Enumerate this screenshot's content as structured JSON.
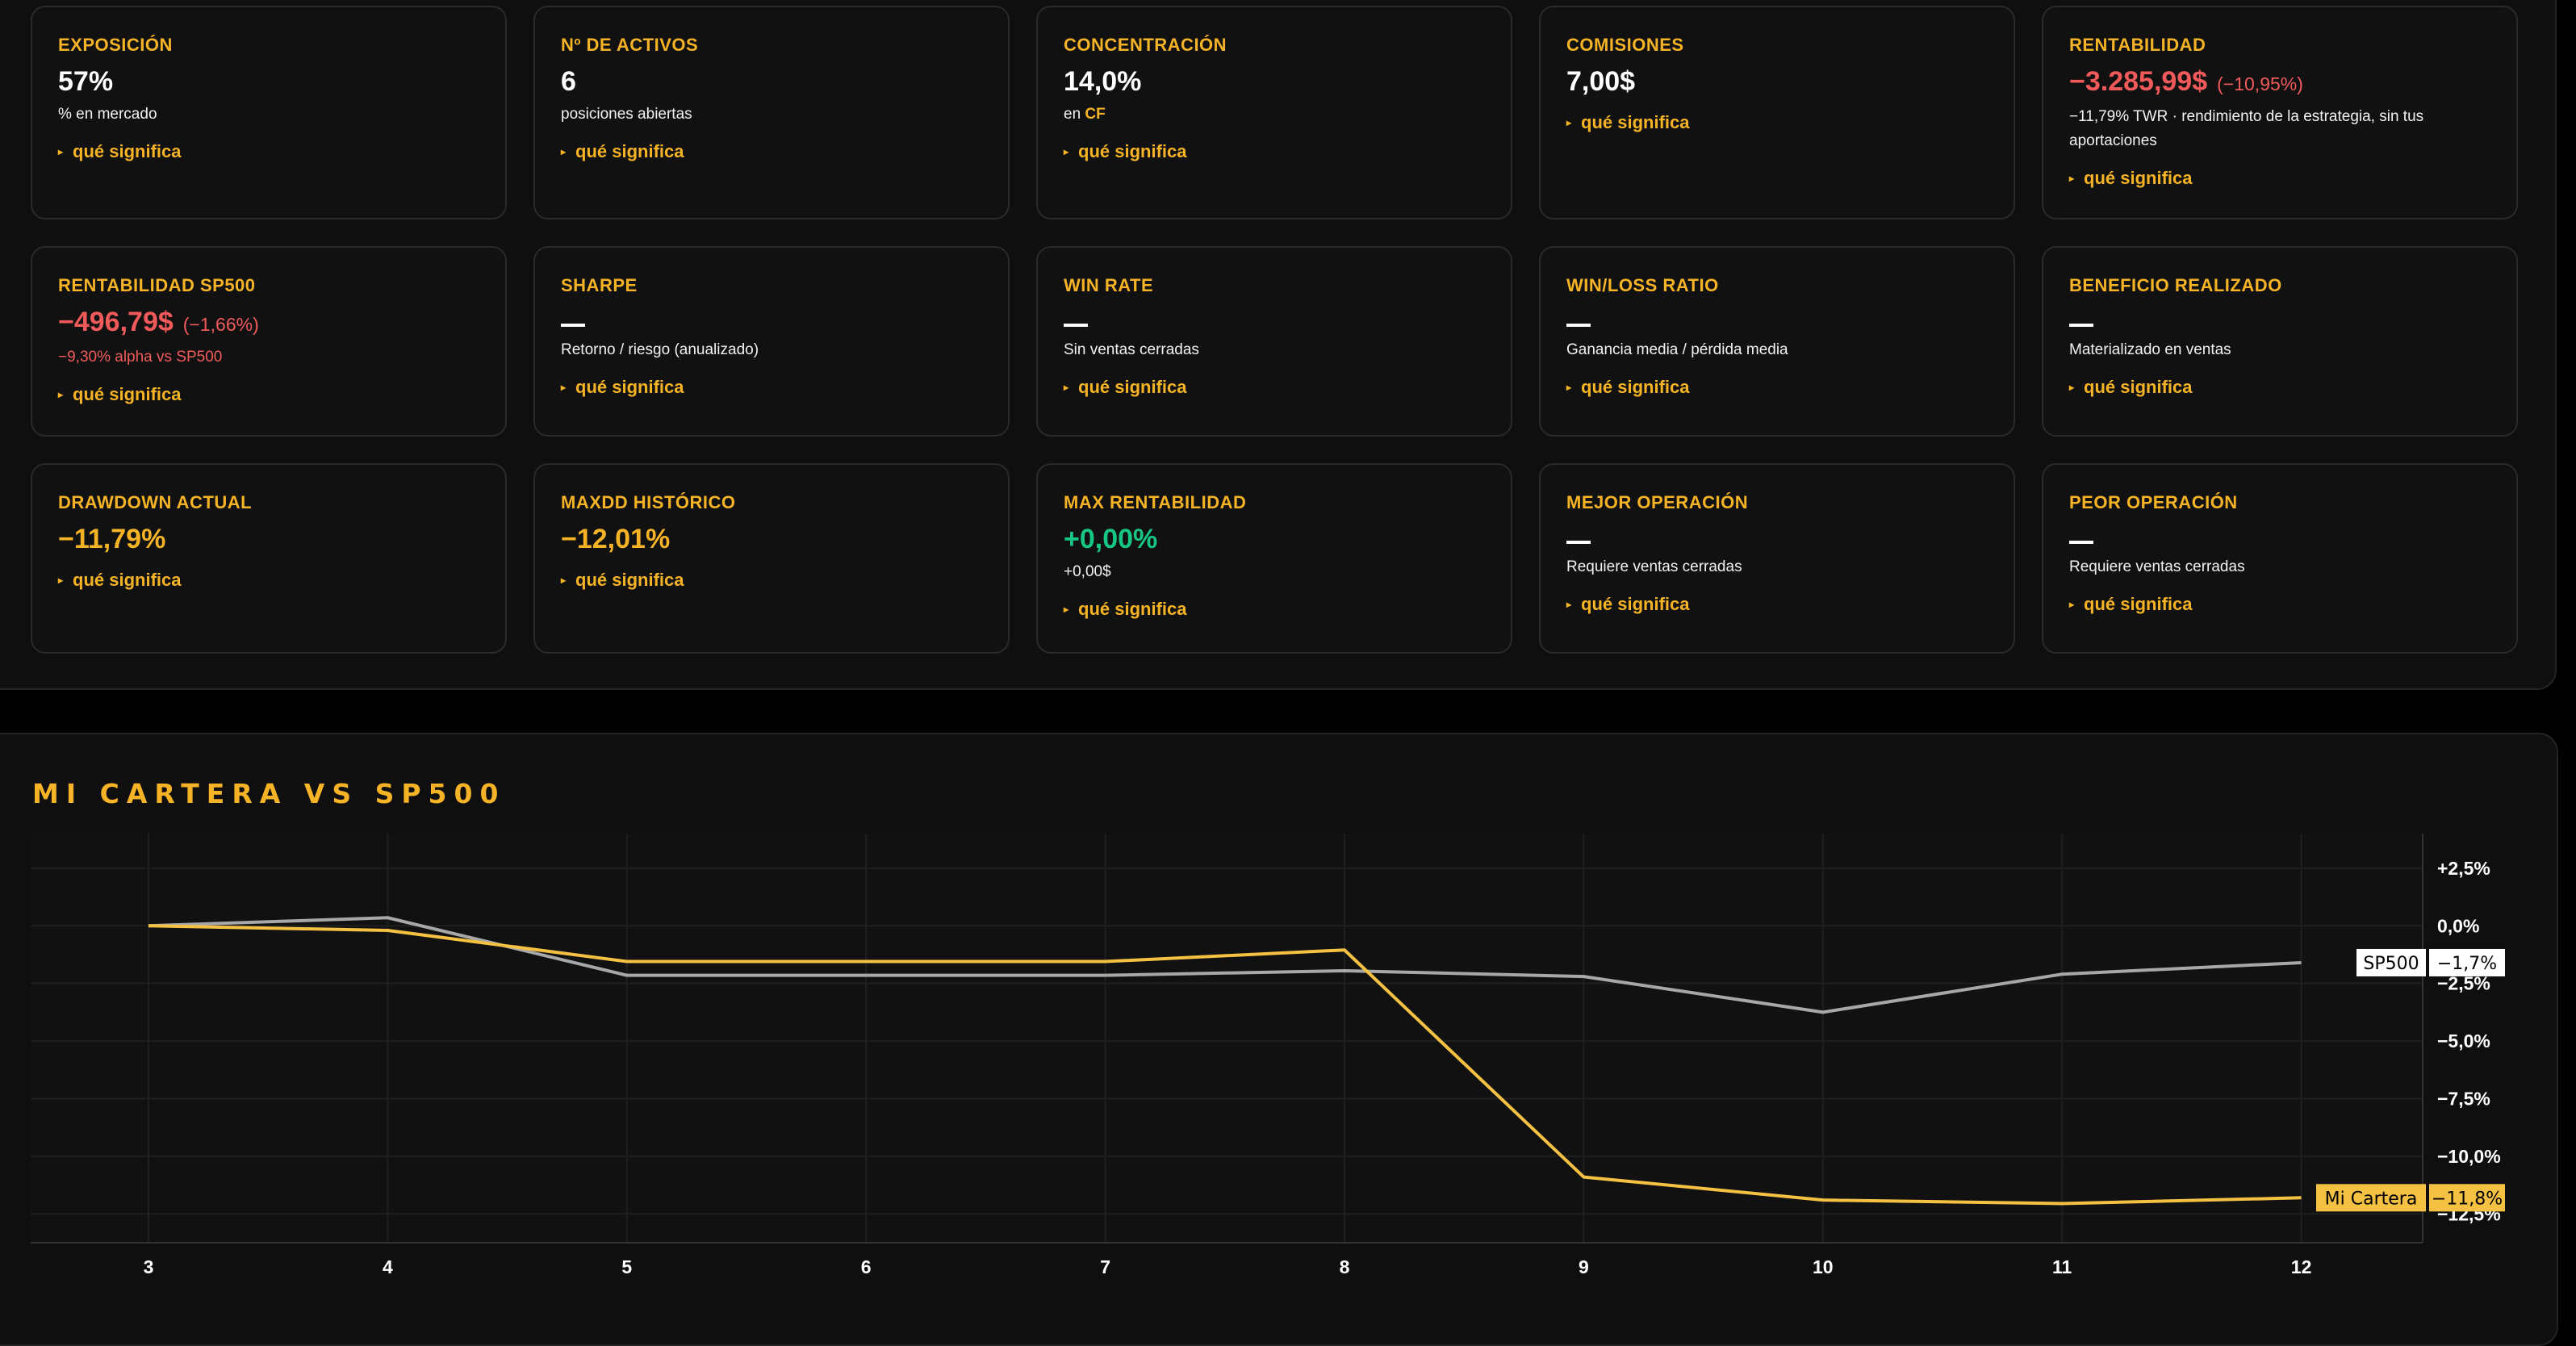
{
  "metrics": [
    {
      "label": "EXPOSICIÓN",
      "value": "57%",
      "desc": "% en mercado",
      "link": "qué significa"
    },
    {
      "label": "Nº DE ACTIVOS",
      "value": "6",
      "desc": "posiciones abiertas",
      "link": "qué significa"
    },
    {
      "label": "CONCENTRACIÓN",
      "value": "14,0%",
      "desc_prefix": "en",
      "desc_ticker": "CF",
      "link": "qué significa"
    },
    {
      "label": "COMISIONES",
      "value": "7,00$",
      "link": "qué significa"
    },
    {
      "label": "RENTABILIDAD",
      "value": "−3.285,99$",
      "value_sub": "(−10,95%)",
      "desc": "−11,79% TWR · rendimiento de la estrategia, sin tus aportaciones",
      "link": "qué significa"
    },
    {
      "label": "RENTABILIDAD SP500",
      "value": "−496,79$",
      "value_sub": "(−1,66%)",
      "desc": "−9,30% alpha vs SP500",
      "link": "qué significa"
    },
    {
      "label": "SHARPE",
      "value": "—",
      "desc": "Retorno / riesgo (anualizado)",
      "link": "qué significa"
    },
    {
      "label": "WIN RATE",
      "value": "—",
      "desc": "Sin ventas cerradas",
      "link": "qué significa"
    },
    {
      "label": "WIN/LOSS RATIO",
      "value": "—",
      "desc": "Ganancia media / pérdida media",
      "link": "qué significa"
    },
    {
      "label": "BENEFICIO REALIZADO",
      "value": "—",
      "desc": "Materializado en ventas",
      "link": "qué significa"
    },
    {
      "label": "DRAWDOWN ACTUAL",
      "value": "−11,79%",
      "link": "qué significa"
    },
    {
      "label": "MAXDD HISTÓRICO",
      "value": "−12,01%",
      "link": "qué significa"
    },
    {
      "label": "MAX RENTABILIDAD",
      "value": "+0,00%",
      "desc": "+0,00$",
      "link": "qué significa"
    },
    {
      "label": "MEJOR OPERACIÓN",
      "value": "—",
      "desc": "Requiere ventas cerradas",
      "link": "qué significa"
    },
    {
      "label": "PEOR OPERACIÓN",
      "value": "—",
      "desc": "Requiere ventas cerradas",
      "link": "qué significa"
    }
  ],
  "chart_title": "MI CARTERA VS SP500",
  "chart_data": {
    "type": "line",
    "title": "MI CARTERA VS SP500",
    "x": [
      3,
      4,
      5,
      6,
      7,
      8,
      9,
      10,
      11,
      12
    ],
    "series": [
      {
        "name": "SP500",
        "values": [
          0.0,
          0.7,
          -4.3,
          -4.3,
          -4.3,
          -3.9,
          -4.4,
          -7.5,
          -4.2,
          -3.2
        ],
        "last_label": "−1,7%",
        "color": "#a8a8a8"
      },
      {
        "name": "Mi Cartera",
        "values": [
          0.0,
          -0.4,
          -3.1,
          -3.1,
          -3.1,
          -2.1,
          -21.8,
          -23.8,
          -24.1,
          -23.6
        ],
        "last_label": "−11,8%",
        "color": "#f5c142"
      }
    ],
    "y_ticks": [
      "+2,5%",
      "0,0%",
      "−2,5%",
      "−5,0%",
      "−7,5%",
      "−10,0%",
      "−12,5%"
    ],
    "y_tick_values": [
      5,
      0,
      -5,
      -10,
      -15,
      -20,
      -25
    ],
    "ylim": [
      -27.5,
      8
    ],
    "xlabel": "",
    "ylabel": "",
    "grid": true
  },
  "colors": {
    "accent": "#f5b325",
    "negative": "#f05a5a",
    "positive": "#16c784",
    "background": "#0f0f0f"
  }
}
